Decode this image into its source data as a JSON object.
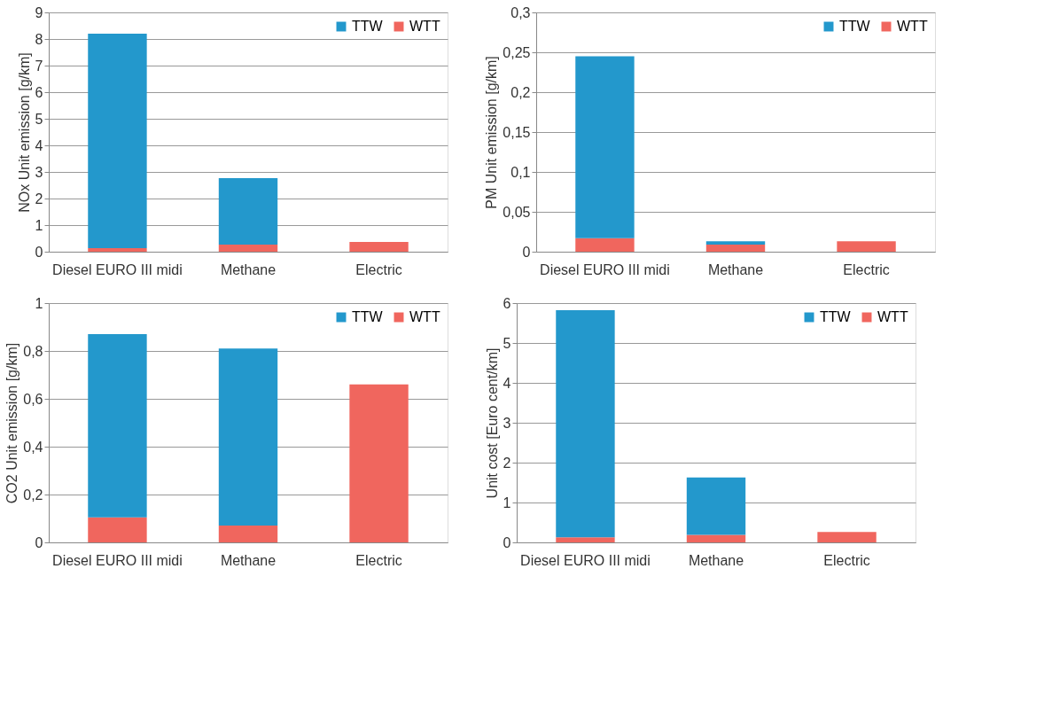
{
  "chart_data": [
    {
      "type": "bar",
      "stacked": true,
      "ylabel": "NOx Unit emission    [g/km]",
      "categories": [
        "Diesel EURO III midi",
        "Methane",
        "Electric"
      ],
      "legend": "top right",
      "grid": "y",
      "ylim": [
        0,
        9
      ],
      "yticks": [
        0,
        1,
        2,
        3,
        4,
        5,
        6,
        7,
        8,
        9
      ],
      "series": [
        {
          "name": "WTT",
          "color": "#f0665e",
          "values": [
            0.13,
            0.27,
            0.37
          ]
        },
        {
          "name": "TTW",
          "color": "#2398cc",
          "values": [
            8.07,
            2.5,
            null
          ]
        }
      ]
    },
    {
      "type": "bar",
      "stacked": true,
      "ylabel": "PM Unit emission    [g/km]",
      "categories": [
        "Diesel EURO III midi",
        "Methane",
        "Electric"
      ],
      "legend": "top right",
      "grid": "y",
      "ylim": [
        0,
        0.3
      ],
      "yticks": [
        0,
        {
          "value": 0.05,
          "label": "0,05"
        },
        {
          "value": 0.1,
          "label": "0,1"
        },
        {
          "value": 0.15,
          "label": "0,15"
        },
        {
          "value": 0.2,
          "label": "0,2"
        },
        {
          "value": 0.25,
          "label": "0,25"
        },
        {
          "value": 0.3,
          "label": "0,3"
        }
      ],
      "series": [
        {
          "name": "WTT",
          "color": "#f0665e",
          "values": [
            0.017,
            0.009,
            0.013
          ]
        },
        {
          "name": "TTW",
          "color": "#2398cc",
          "values": [
            0.228,
            0.004,
            null
          ]
        }
      ]
    },
    {
      "type": "bar",
      "stacked": true,
      "ylabel": "CO2 Unit emission    [g/km]",
      "categories": [
        "Diesel EURO III midi",
        "Methane",
        "Electric"
      ],
      "legend": "top right",
      "grid": "y",
      "ylim": [
        0,
        1
      ],
      "yticks": [
        0,
        {
          "value": 0.2,
          "label": "0,2"
        },
        {
          "value": 0.4,
          "label": "0,4"
        },
        {
          "value": 0.6,
          "label": "0,6"
        },
        {
          "value": 0.8,
          "label": "0,8"
        },
        1
      ],
      "series": [
        {
          "name": "WTT",
          "color": "#f0665e",
          "values": [
            0.105,
            0.07,
            0.66
          ]
        },
        {
          "name": "TTW",
          "color": "#2398cc",
          "values": [
            0.765,
            0.74,
            null
          ]
        }
      ]
    },
    {
      "type": "bar",
      "stacked": true,
      "ylabel": "Unit cost    [Euro cent/km]",
      "categories": [
        "Diesel EURO III midi",
        "Methane",
        "Electric"
      ],
      "legend": "top right",
      "grid": "y",
      "ylim": [
        0,
        6
      ],
      "yticks": [
        0,
        1,
        2,
        3,
        4,
        5,
        6
      ],
      "series": [
        {
          "name": "WTT",
          "color": "#f0665e",
          "values": [
            0.13,
            0.19,
            0.26
          ]
        },
        {
          "name": "TTW",
          "color": "#2398cc",
          "values": [
            5.69,
            1.44,
            null
          ]
        }
      ]
    }
  ]
}
